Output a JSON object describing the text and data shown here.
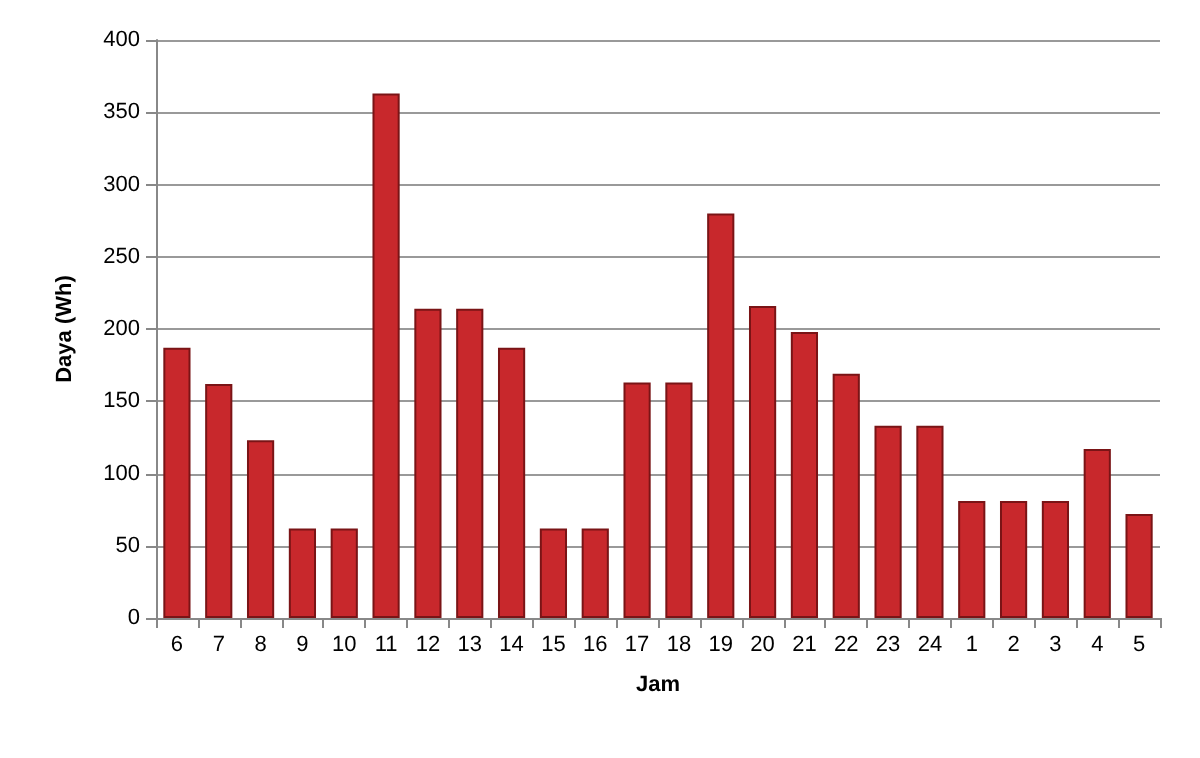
{
  "chart_data": {
    "type": "bar",
    "xlabel": "Jam",
    "ylabel": "Daya (Wh)",
    "categories": [
      "6",
      "7",
      "8",
      "9",
      "10",
      "11",
      "12",
      "13",
      "14",
      "15",
      "16",
      "17",
      "18",
      "19",
      "20",
      "21",
      "22",
      "23",
      "24",
      "1",
      "2",
      "3",
      "4",
      "5"
    ],
    "values": [
      187,
      162,
      123,
      62,
      62,
      363,
      214,
      214,
      187,
      62,
      62,
      163,
      163,
      280,
      216,
      198,
      169,
      133,
      133,
      81,
      81,
      81,
      117,
      72
    ],
    "color": "#c8282c",
    "ylim": [
      0,
      400
    ],
    "yticks": [
      0,
      50,
      100,
      150,
      200,
      250,
      300,
      350,
      400
    ],
    "grid": "y"
  }
}
